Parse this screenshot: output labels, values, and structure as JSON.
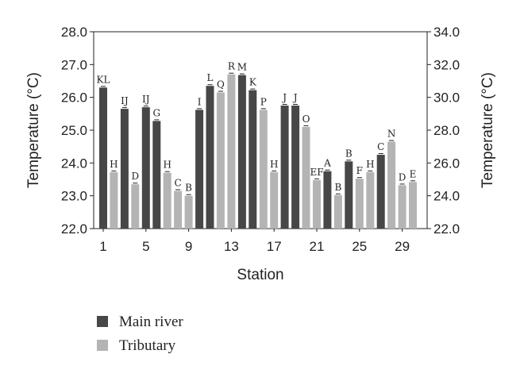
{
  "chart_data": {
    "type": "bar",
    "xlabel": "Station",
    "ylabel": "Temperature (°C)",
    "y2label": "Temperature (°C)",
    "ylim": [
      22.0,
      28.0
    ],
    "y2lim": [
      22.0,
      34.0
    ],
    "yticks": [
      "22.0",
      "23.0",
      "24.0",
      "25.0",
      "26.0",
      "27.0",
      "28.0"
    ],
    "y2ticks": [
      "22.0",
      "24.0",
      "26.0",
      "28.0",
      "30.0",
      "32.0",
      "34.0"
    ],
    "xticks": [
      "1",
      "5",
      "9",
      "13",
      "17",
      "21",
      "25",
      "29"
    ],
    "grid": false,
    "legend_position": "bottom-left",
    "colors": {
      "main": "#474747",
      "tributary": "#b4b4b4"
    },
    "series": [
      {
        "name": "Main river",
        "key": "main"
      },
      {
        "name": "Tributary",
        "key": "tributary"
      }
    ],
    "bars": [
      {
        "station": 1,
        "type": "main",
        "value": 26.3,
        "label": "KL"
      },
      {
        "station": 2,
        "type": "tributary",
        "value": 23.72,
        "label": "H"
      },
      {
        "station": 3,
        "type": "main",
        "value": 25.65,
        "label": "IJ"
      },
      {
        "station": 4,
        "type": "tributary",
        "value": 23.35,
        "label": "D"
      },
      {
        "station": 5,
        "type": "main",
        "value": 25.7,
        "label": "IJ"
      },
      {
        "station": 6,
        "type": "main",
        "value": 25.28,
        "label": "G"
      },
      {
        "station": 7,
        "type": "tributary",
        "value": 23.7,
        "label": "H"
      },
      {
        "station": 8,
        "type": "tributary",
        "value": 23.15,
        "label": "C"
      },
      {
        "station": 9,
        "type": "tributary",
        "value": 23.0,
        "label": "B"
      },
      {
        "station": 10,
        "type": "main",
        "value": 25.62,
        "label": "I"
      },
      {
        "station": 11,
        "type": "main",
        "value": 26.35,
        "label": "L"
      },
      {
        "station": 12,
        "type": "tributary",
        "value": 26.15,
        "label": "Q"
      },
      {
        "station": 13,
        "type": "tributary",
        "value": 26.7,
        "label": "R"
      },
      {
        "station": 14,
        "type": "main",
        "value": 26.68,
        "label": "M"
      },
      {
        "station": 15,
        "type": "main",
        "value": 26.22,
        "label": "K"
      },
      {
        "station": 16,
        "type": "tributary",
        "value": 25.62,
        "label": "P"
      },
      {
        "station": 17,
        "type": "tributary",
        "value": 23.72,
        "label": "H"
      },
      {
        "station": 18,
        "type": "main",
        "value": 25.75,
        "label": "J"
      },
      {
        "station": 19,
        "type": "main",
        "value": 25.75,
        "label": "J"
      },
      {
        "station": 20,
        "type": "tributary",
        "value": 25.1,
        "label": "O"
      },
      {
        "station": 21,
        "type": "tributary",
        "value": 23.48,
        "label": "EF"
      },
      {
        "station": 22,
        "type": "main",
        "value": 23.75,
        "label": "A"
      },
      {
        "station": 23,
        "type": "tributary",
        "value": 23.02,
        "label": "B"
      },
      {
        "station": 24,
        "type": "main",
        "value": 24.05,
        "label": "B"
      },
      {
        "station": 25,
        "type": "tributary",
        "value": 23.52,
        "label": "F"
      },
      {
        "station": 26,
        "type": "tributary",
        "value": 23.72,
        "label": "H"
      },
      {
        "station": 27,
        "type": "main",
        "value": 24.25,
        "label": "C"
      },
      {
        "station": 28,
        "type": "tributary",
        "value": 24.65,
        "label": "N"
      },
      {
        "station": 29,
        "type": "tributary",
        "value": 23.32,
        "label": "D"
      },
      {
        "station": 30,
        "type": "tributary",
        "value": 23.42,
        "label": "E"
      }
    ]
  }
}
